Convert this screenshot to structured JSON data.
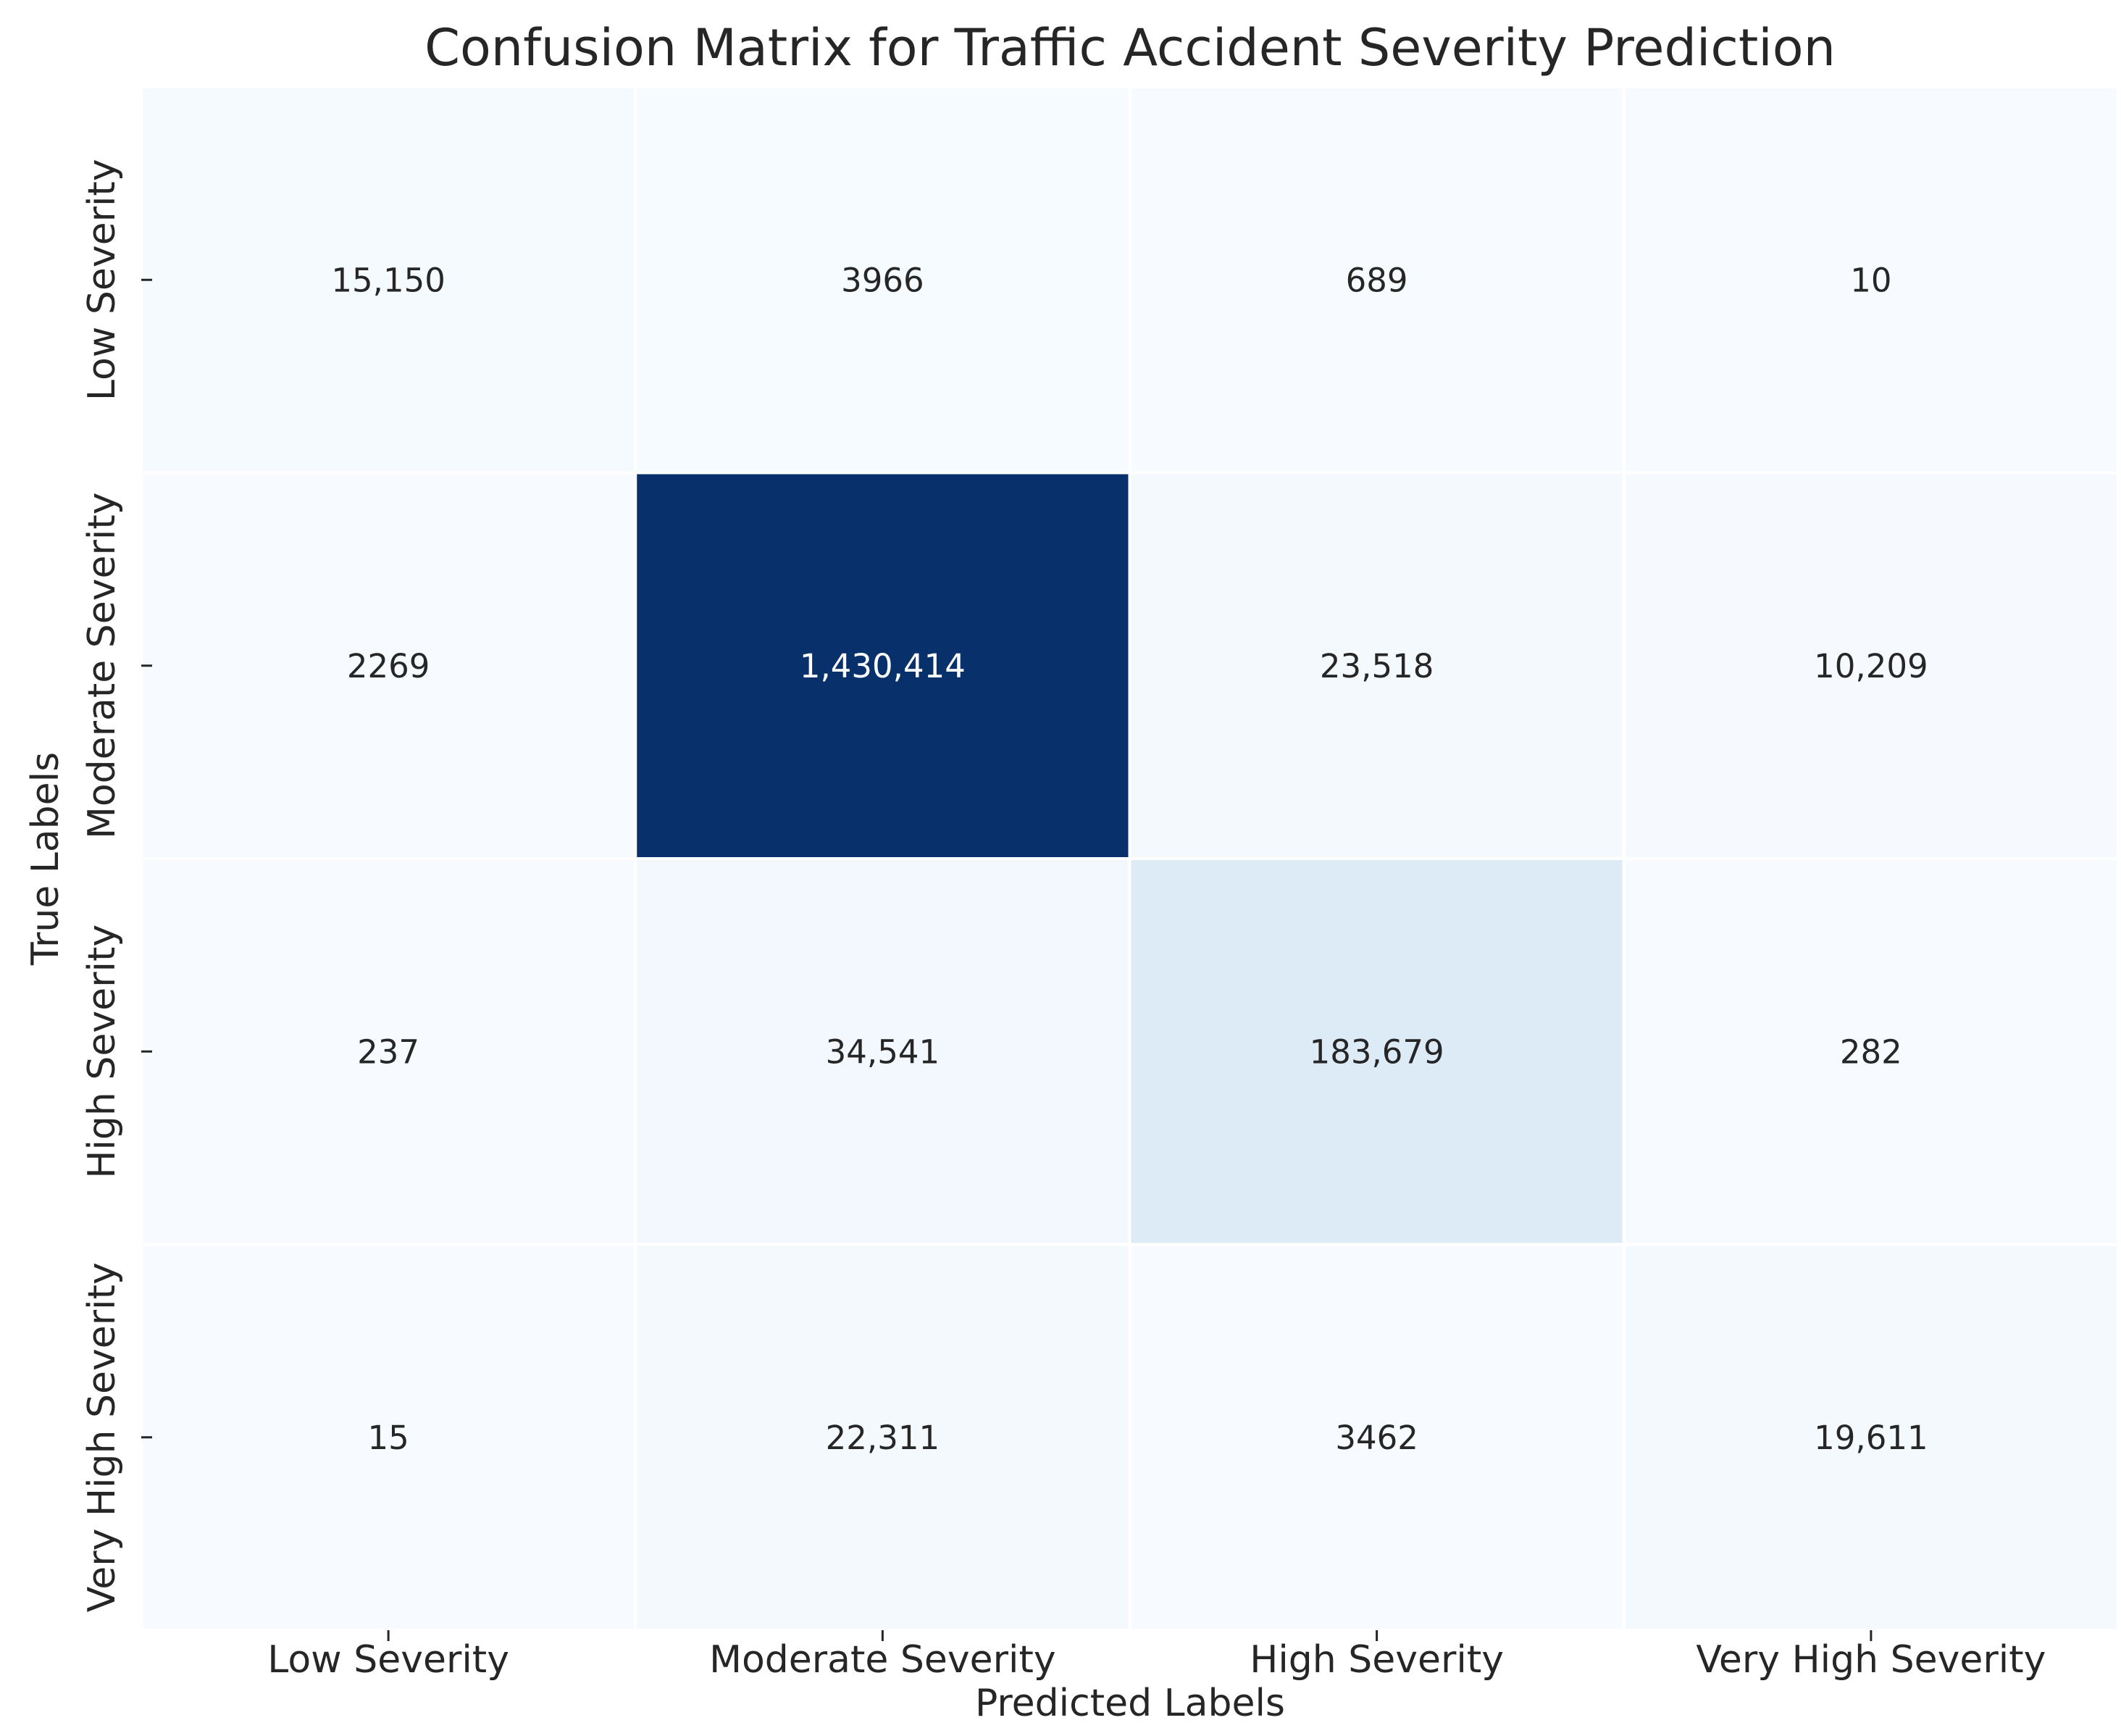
{
  "chart_data": {
    "type": "heatmap",
    "title": "Confusion Matrix for Traffic Accident Severity Prediction",
    "xlabel": "Predicted Labels",
    "ylabel": "True Labels",
    "x_categories": [
      "Low Severity",
      "Moderate Severity",
      "High Severity",
      "Very High Severity"
    ],
    "y_categories": [
      "Low Severity",
      "Moderate Severity",
      "High Severity",
      "Very High Severity"
    ],
    "values": [
      [
        15150,
        3966,
        689,
        10
      ],
      [
        2269,
        1430414,
        23518,
        10209
      ],
      [
        237,
        34541,
        183679,
        282
      ],
      [
        15,
        22311,
        3462,
        19611
      ]
    ],
    "value_labels": [
      [
        "15,150",
        "3966",
        "689",
        "10"
      ],
      [
        "2269",
        "1,430,414",
        "23,518",
        "10,209"
      ],
      [
        "237",
        "34,541",
        "183,679",
        "282"
      ],
      [
        "15",
        "22,311",
        "3462",
        "19,611"
      ]
    ],
    "colormap": "Blues",
    "colorbar": false,
    "grid": false
  }
}
